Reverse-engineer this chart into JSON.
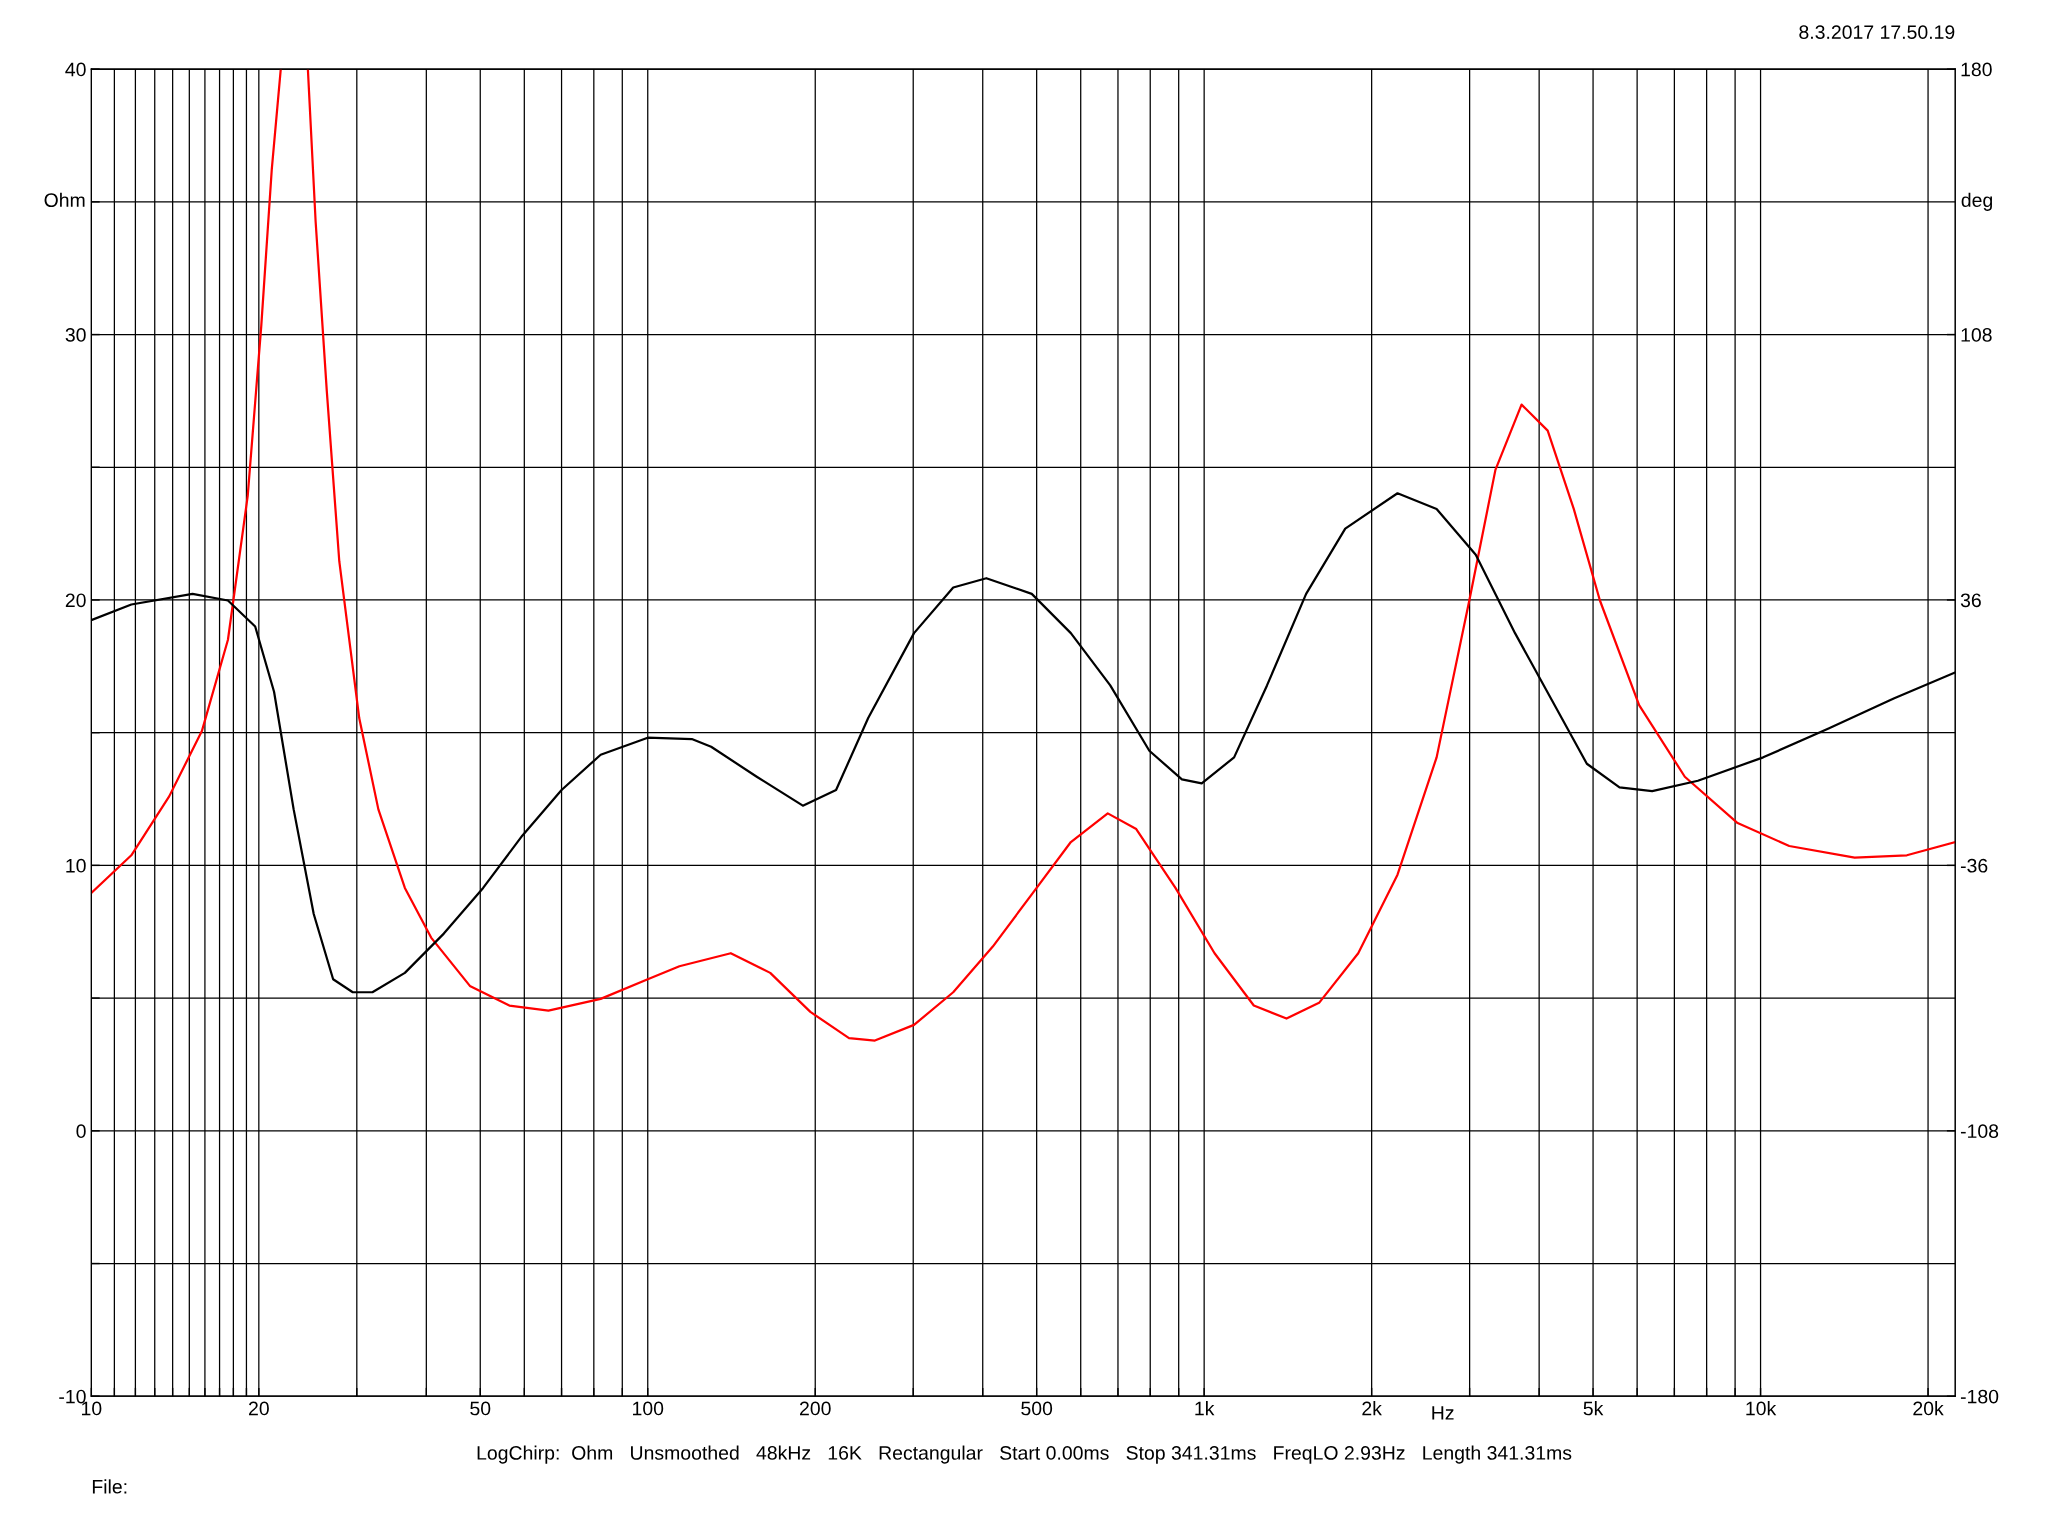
{
  "chart_data": {
    "type": "line",
    "xlabel": "Hz",
    "ylabel": "Ohm",
    "y2label": "deg",
    "log": "x",
    "grid": true,
    "legend": false,
    "marker": "none",
    "line_style": "solid",
    "xlim": [
      10,
      22380
    ],
    "xticks": [
      10,
      {
        "value": 11,
        "label": null
      },
      {
        "value": 12,
        "label": null
      },
      {
        "value": 13,
        "label": null
      },
      {
        "value": 14,
        "label": null
      },
      {
        "value": 15,
        "label": null
      },
      {
        "value": 16,
        "label": null
      },
      {
        "value": 17,
        "label": null
      },
      {
        "value": 18,
        "label": null
      },
      {
        "value": 19,
        "label": null
      },
      20,
      {
        "value": 30,
        "label": null
      },
      {
        "value": 40,
        "label": null
      },
      50,
      {
        "value": 60,
        "label": null
      },
      {
        "value": 70,
        "label": null
      },
      {
        "value": 80,
        "label": null
      },
      {
        "value": 90,
        "label": null
      },
      100,
      200,
      {
        "value": 300,
        "label": null
      },
      {
        "value": 400,
        "label": null
      },
      500,
      {
        "value": 600,
        "label": null
      },
      {
        "value": 700,
        "label": null
      },
      {
        "value": 800,
        "label": null
      },
      {
        "value": 900,
        "label": null
      },
      {
        "value": 1000,
        "label": "1k"
      },
      {
        "value": 2000,
        "label": "2k"
      },
      {
        "value": 3000,
        "label": null
      },
      {
        "value": 4000,
        "label": null
      },
      {
        "value": 5000,
        "label": "5k"
      },
      {
        "value": 6000,
        "label": null
      },
      {
        "value": 7000,
        "label": null
      },
      {
        "value": 8000,
        "label": null
      },
      {
        "value": 9000,
        "label": null
      },
      {
        "value": 10000,
        "label": "10k"
      },
      {
        "value": 20000,
        "label": "20k"
      }
    ],
    "ylim": [
      -10,
      40
    ],
    "yticks": [
      -10,
      {
        "value": -5,
        "label": null
      },
      0,
      {
        "value": 5,
        "label": null
      },
      10,
      {
        "value": 15,
        "label": null
      },
      20,
      {
        "value": 25,
        "label": null
      },
      30,
      {
        "value": 35,
        "label": null
      },
      40
    ],
    "y2lim": [
      -180,
      180
    ],
    "y2ticks": [
      -180,
      -108,
      -36,
      36,
      108,
      180
    ],
    "annotations": [
      "8.3.2017 17.50.19",
      "LogChirp:  Ohm   Unsmoothed   48kHz   16K   Rectangular   Start 0.00ms   Stop 341.31ms   FreqLO 2.93Hz   Length 341.31ms",
      "File:"
    ],
    "series": [
      {
        "color": "#ff0000",
        "x": [
          10,
          11.8,
          13.8,
          15.8,
          17.6,
          19.1,
          20.2,
          21.1,
          21.9,
          21.95,
          24.45,
          24.5,
          25.3,
          26.5,
          27.9,
          30.3,
          32.8,
          36.6,
          40.8,
          47.9,
          56.4,
          66.3,
          82.3,
          100,
          114,
          141,
          166,
          196,
          230,
          256,
          301,
          354,
          417,
          490,
          576,
          671,
          755,
          888,
          1044,
          1228,
          1406,
          1609,
          1892,
          2226,
          2617,
          2996,
          3338,
          3719,
          4144,
          4616,
          5144,
          6050,
          7309,
          9073,
          11260,
          14760,
          18320,
          22380
        ],
        "values": [
          8.96,
          10.38,
          12.6,
          15.06,
          18.5,
          23.92,
          30.31,
          36.22,
          40,
          null,
          null,
          40,
          34.25,
          27.85,
          21.46,
          15.55,
          12.11,
          9.15,
          7.28,
          5.46,
          4.72,
          4.53,
          4.97,
          5.71,
          6.2,
          6.69,
          5.95,
          4.48,
          3.49,
          3.4,
          3.99,
          5.22,
          6.94,
          8.91,
          10.88,
          11.96,
          11.37,
          9.15,
          6.69,
          4.72,
          4.23,
          4.82,
          6.69,
          9.65,
          14.07,
          19.98,
          24.9,
          27.36,
          26.38,
          23.43,
          19.98,
          16.04,
          13.34,
          11.61,
          10.73,
          10.29,
          10.38,
          10.88
        ]
      },
      {
        "color": "#000000",
        "x": [
          10,
          11.8,
          15.2,
          17.6,
          19.7,
          21.3,
          23.1,
          25.1,
          27.2,
          29.5,
          32.0,
          36.6,
          43.0,
          50.6,
          59.5,
          70.0,
          82.3,
          100,
          120,
          130,
          157,
          190,
          218,
          249,
          301,
          354,
          406,
          490,
          576,
          678,
          797,
          912,
          990,
          1132,
          1297,
          1525,
          1793,
          2226,
          2617,
          3077,
          3620,
          4873,
          5578,
          6386,
          7716,
          10110,
          13250,
          17350,
          22380
        ],
        "values": [
          19.24,
          19.83,
          20.23,
          19.98,
          19.0,
          16.54,
          12.11,
          8.17,
          5.71,
          5.22,
          5.22,
          5.95,
          7.43,
          9.15,
          11.12,
          12.84,
          14.17,
          14.81,
          14.76,
          14.47,
          13.34,
          12.25,
          12.84,
          15.55,
          18.75,
          20.47,
          20.82,
          20.23,
          18.75,
          16.78,
          14.32,
          13.24,
          13.09,
          14.07,
          16.78,
          20.23,
          22.69,
          24.02,
          23.43,
          21.7,
          18.75,
          13.83,
          12.94,
          12.8,
          13.19,
          14.07,
          15.16,
          16.29,
          17.27
        ]
      }
    ]
  }
}
